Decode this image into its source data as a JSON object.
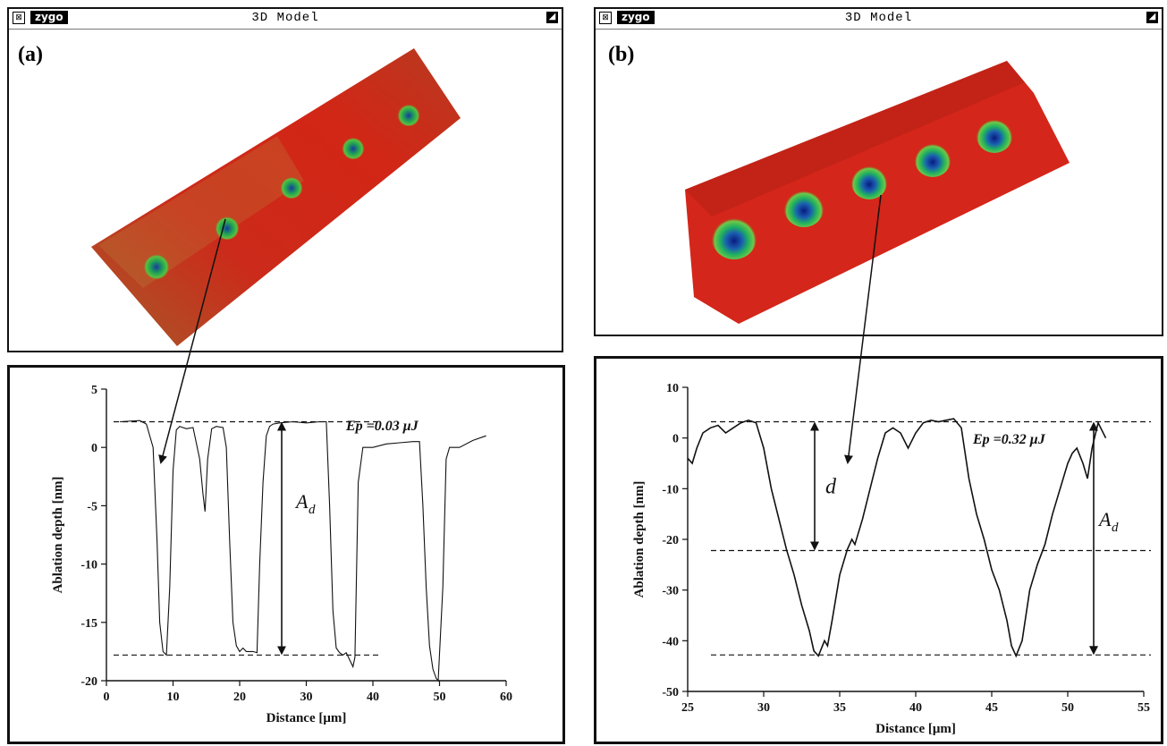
{
  "windows": [
    {
      "title": "3D Model",
      "logo": "zygo",
      "panel_label": "(a)"
    },
    {
      "title": "3D Model",
      "logo": "zygo",
      "panel_label": "(b)"
    }
  ],
  "chart_data": [
    {
      "type": "line",
      "xlabel": "Distance [μm]",
      "ylabel": "Ablation depth [nm]",
      "xlim": [
        0,
        60
      ],
      "ylim": [
        -20,
        5
      ],
      "xticks": [
        0,
        10,
        20,
        30,
        40,
        50,
        60
      ],
      "yticks": [
        5,
        0,
        -5,
        -10,
        -15,
        -20
      ],
      "annotation": "Ep =0.03 μJ",
      "depth_label": "A",
      "depth_sub": "d",
      "reference_lines": [
        2.2,
        -17.8
      ],
      "series": [
        {
          "x": [
            2,
            5,
            6,
            7,
            7.6,
            8,
            8.5,
            9,
            9.5,
            10,
            10.5,
            11,
            12,
            13,
            14,
            14.5,
            14.8,
            15.2,
            15.8,
            16.5,
            17.5,
            18,
            18.5,
            19,
            19.5,
            20,
            20.5,
            21,
            22,
            22.6,
            23,
            23.5,
            24,
            24.5,
            25,
            26,
            28,
            30,
            32,
            33,
            33.5,
            34,
            34.5,
            35,
            35.5,
            36,
            36.5,
            37,
            37.3,
            37.8,
            38.5,
            40,
            42,
            44,
            46,
            47,
            47.5,
            48,
            48.5,
            49,
            49.5,
            49.8,
            50.5,
            51,
            51.5,
            52,
            53,
            55,
            57
          ],
          "y": [
            2.2,
            2.3,
            2,
            0,
            -8,
            -15,
            -17.5,
            -17.8,
            -12,
            -2,
            1.5,
            1.8,
            1.6,
            1.7,
            -1,
            -4,
            -5.5,
            -1,
            1.6,
            1.8,
            1.7,
            0,
            -8,
            -15,
            -17,
            -17.5,
            -17.2,
            -17.5,
            -17.5,
            -17.6,
            -10,
            -3,
            1,
            1.8,
            2,
            2.1,
            2.2,
            2.1,
            2.2,
            2.2,
            -5,
            -14,
            -17.2,
            -17.6,
            -17.8,
            -17.6,
            -18.2,
            -18.8,
            -18,
            -3,
            0,
            0,
            0.3,
            0.4,
            0.5,
            0.5,
            -5,
            -12,
            -17,
            -19,
            -19.8,
            -20,
            -12,
            -1,
            0,
            0,
            0,
            0.6,
            1
          ]
        }
      ]
    },
    {
      "type": "line",
      "xlabel": "Distance [μm]",
      "ylabel": "Ablation depth [nm]",
      "xlim": [
        25,
        55
      ],
      "ylim": [
        -50,
        10
      ],
      "xticks": [
        25,
        30,
        35,
        40,
        45,
        50,
        55
      ],
      "yticks": [
        10,
        0,
        -10,
        -20,
        -30,
        -40,
        -50
      ],
      "annotation": "Ep =0.32 μJ",
      "depth_label": "A",
      "depth_sub": "d",
      "small_depth_label": "d",
      "reference_lines": [
        3.2,
        -22.2,
        -42.8
      ],
      "series": [
        {
          "x": [
            25,
            25.3,
            25.6,
            26,
            26.5,
            27,
            27.5,
            28,
            28.5,
            29,
            29.5,
            30,
            30.5,
            31,
            31.5,
            32,
            32.5,
            33,
            33.3,
            33.6,
            34,
            34.2,
            34.5,
            35,
            35.5,
            35.8,
            36,
            36.5,
            37,
            37.5,
            38,
            38.5,
            39,
            39.5,
            40,
            40.5,
            41,
            41.5,
            42,
            42.5,
            43,
            43.5,
            44,
            44.5,
            45,
            45.5,
            46,
            46.3,
            46.6,
            47,
            47.5,
            48,
            48.5,
            49,
            49.5,
            50,
            50.3,
            50.6,
            51,
            51.3,
            51.6,
            52,
            52.5
          ],
          "y": [
            -4,
            -5,
            -2,
            1,
            2,
            2.5,
            1,
            2,
            3,
            3.5,
            3,
            -2,
            -10,
            -16,
            -22,
            -27,
            -33,
            -38,
            -42,
            -43,
            -40,
            -41,
            -36,
            -27,
            -22,
            -20,
            -21,
            -16,
            -10,
            -4,
            1,
            2,
            1,
            -2,
            1,
            3,
            3.5,
            3.2,
            3.5,
            3.8,
            2,
            -8,
            -15,
            -20,
            -26,
            -30,
            -36,
            -41,
            -43,
            -40,
            -30,
            -25,
            -21,
            -15,
            -10,
            -5,
            -3,
            -2,
            -5,
            -8,
            -2,
            3,
            0
          ]
        }
      ]
    }
  ]
}
